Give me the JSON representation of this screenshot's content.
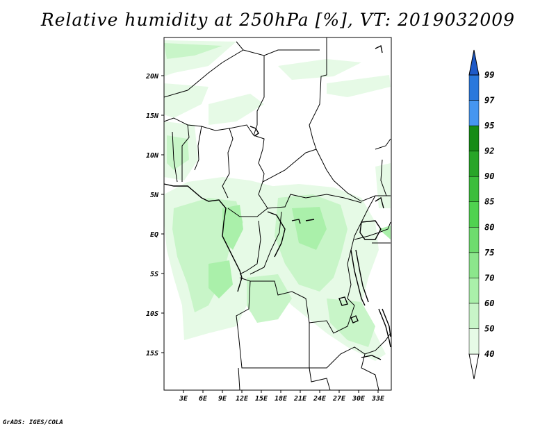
{
  "title": "Relative humidity at 250hPa [%], VT: 2019032009",
  "credit": "GrADS: IGES/COLA",
  "map": {
    "lat_labels": [
      "20N",
      "15N",
      "10N",
      "5N",
      "EQ",
      "5S",
      "10S",
      "15S"
    ],
    "lon_labels": [
      "3E",
      "6E",
      "9E",
      "12E",
      "15E",
      "18E",
      "21E",
      "24E",
      "27E",
      "30E",
      "33E"
    ]
  },
  "colorbar": {
    "levels": [
      "40",
      "50",
      "60",
      "70",
      "75",
      "80",
      "85",
      "90",
      "92",
      "95",
      "97",
      "99"
    ],
    "colors": [
      "#e6fae6",
      "#c8f5c8",
      "#aaf0aa",
      "#8ce68c",
      "#6edc6e",
      "#50d250",
      "#3cbe3c",
      "#28a528",
      "#168c16",
      "#4696f0",
      "#2a78dc",
      "#1e5ac8"
    ],
    "under_color": "#ffffff",
    "over_color": "#1e5ac8"
  },
  "colors": {
    "land_outline": "#000000",
    "humid_light": "#e6fae6",
    "humid_mid": "#c8f5c8",
    "humid_dark": "#aaf0aa"
  }
}
